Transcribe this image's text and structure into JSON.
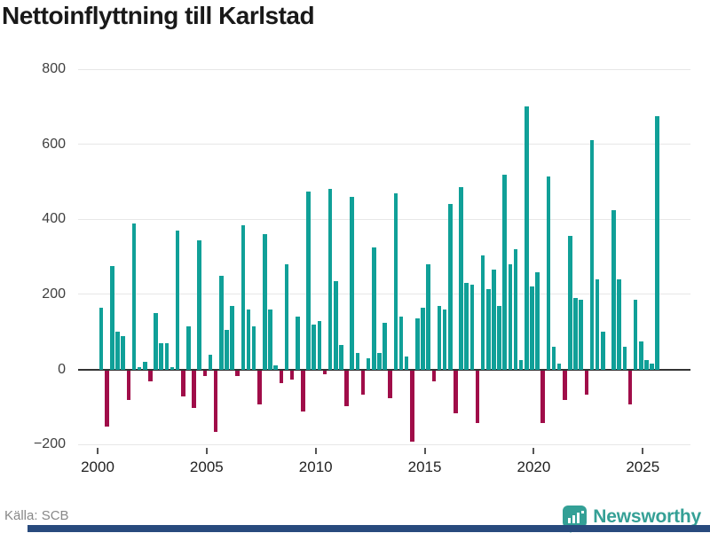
{
  "chart_data": {
    "type": "bar",
    "title": "Nettoinflyttning till Karlstad",
    "xlabel": "",
    "ylabel": "",
    "frequency": "quarterly",
    "x_tick_labels": [
      "2000",
      "2005",
      "2010",
      "2015",
      "2020",
      "2025"
    ],
    "y_ticks": [
      800,
      600,
      400,
      200,
      0,
      -200
    ],
    "ylim": [
      -200,
      800
    ],
    "grid": "horizontal",
    "legend": "none",
    "positive_color": "#10a098",
    "negative_color": "#a00d49",
    "series": [
      {
        "year": 2000,
        "values": [
          165,
          -150,
          275,
          100
        ]
      },
      {
        "year": 2001,
        "values": [
          90,
          -80,
          390,
          5
        ]
      },
      {
        "year": 2002,
        "values": [
          20,
          -30,
          150,
          70
        ]
      },
      {
        "year": 2003,
        "values": [
          70,
          5,
          370,
          -70
        ]
      },
      {
        "year": 2004,
        "values": [
          115,
          -100,
          345,
          -15
        ]
      },
      {
        "year": 2005,
        "values": [
          40,
          -165,
          250,
          105
        ]
      },
      {
        "year": 2006,
        "values": [
          170,
          -15,
          385,
          160
        ]
      },
      {
        "year": 2007,
        "values": [
          115,
          -90,
          360,
          160
        ]
      },
      {
        "year": 2008,
        "values": [
          10,
          -35,
          280,
          -25
        ]
      },
      {
        "year": 2009,
        "values": [
          140,
          -110,
          475,
          120
        ]
      },
      {
        "year": 2010,
        "values": [
          130,
          -10,
          480,
          235
        ]
      },
      {
        "year": 2011,
        "values": [
          65,
          -95,
          460,
          45
        ]
      },
      {
        "year": 2012,
        "values": [
          -65,
          30,
          325,
          45
        ]
      },
      {
        "year": 2013,
        "values": [
          125,
          -75,
          470,
          140
        ]
      },
      {
        "year": 2014,
        "values": [
          35,
          -190,
          135,
          165
        ]
      },
      {
        "year": 2015,
        "values": [
          280,
          -30,
          170,
          160
        ]
      },
      {
        "year": 2016,
        "values": [
          440,
          -115,
          485,
          230
        ]
      },
      {
        "year": 2017,
        "values": [
          225,
          -140,
          305,
          215
        ]
      },
      {
        "year": 2018,
        "values": [
          265,
          170,
          520,
          280
        ]
      },
      {
        "year": 2019,
        "values": [
          320,
          25,
          700,
          220
        ]
      },
      {
        "year": 2020,
        "values": [
          260,
          -140,
          515,
          60
        ]
      },
      {
        "year": 2021,
        "values": [
          15,
          -80,
          355,
          190
        ]
      },
      {
        "year": 2022,
        "values": [
          185,
          -65,
          610,
          240
        ]
      },
      {
        "year": 2023,
        "values": [
          100,
          0,
          425,
          240
        ]
      },
      {
        "year": 2024,
        "values": [
          60,
          -90,
          185,
          75
        ]
      },
      {
        "year": 2025,
        "values": [
          25,
          15,
          675
        ]
      }
    ]
  },
  "footer": {
    "source_label": "Källa: SCB",
    "brand": "Newsworthy"
  }
}
